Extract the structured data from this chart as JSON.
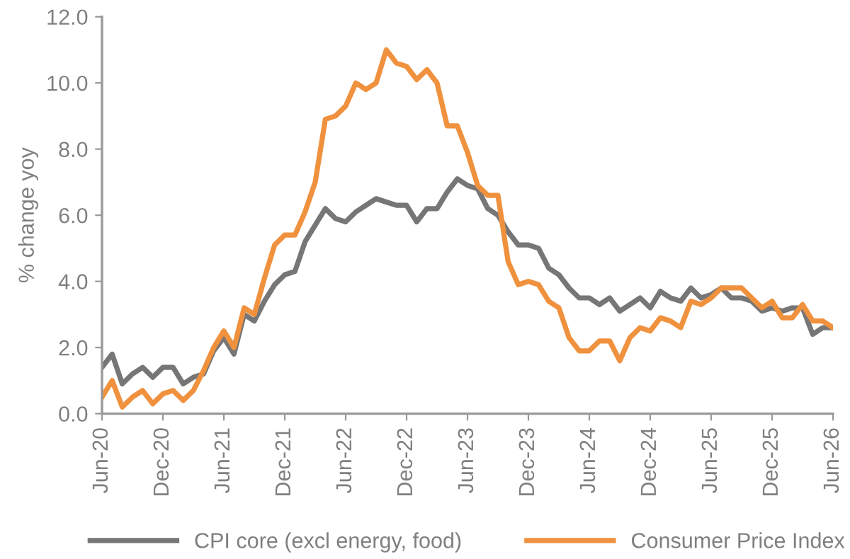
{
  "chart_data": {
    "type": "line",
    "ylabel": "% change yoy",
    "ylim": [
      0,
      12
    ],
    "yticks": [
      {
        "value": 0,
        "label": "0.0"
      },
      {
        "value": 2,
        "label": "2.0"
      },
      {
        "value": 4,
        "label": "4.0"
      },
      {
        "value": 6,
        "label": "6.0"
      },
      {
        "value": 8,
        "label": "8.0"
      },
      {
        "value": 10,
        "label": "10.0"
      },
      {
        "value": 12,
        "label": "12.0"
      }
    ],
    "xlim": [
      "2020-06",
      "2026-06"
    ],
    "xticks": [
      {
        "value": "2020-06",
        "label": "Jun-20"
      },
      {
        "value": "2020-12",
        "label": "Dec-20"
      },
      {
        "value": "2021-06",
        "label": "Jun-21"
      },
      {
        "value": "2021-12",
        "label": "Dec-21"
      },
      {
        "value": "2022-06",
        "label": "Jun-22"
      },
      {
        "value": "2022-12",
        "label": "Dec-22"
      },
      {
        "value": "2023-06",
        "label": "Jun-23"
      },
      {
        "value": "2023-12",
        "label": "Dec-23"
      },
      {
        "value": "2024-06",
        "label": "Jun-24"
      },
      {
        "value": "2024-12",
        "label": "Dec-24"
      },
      {
        "value": "2025-06",
        "label": "Jun-25"
      },
      {
        "value": "2025-12",
        "label": "Dec-25"
      },
      {
        "value": "2026-06",
        "label": "Jun-26"
      }
    ],
    "x": [
      "2020-06",
      "2020-07",
      "2020-08",
      "2020-09",
      "2020-10",
      "2020-11",
      "2020-12",
      "2021-01",
      "2021-02",
      "2021-03",
      "2021-04",
      "2021-05",
      "2021-06",
      "2021-07",
      "2021-08",
      "2021-09",
      "2021-10",
      "2021-11",
      "2021-12",
      "2022-01",
      "2022-02",
      "2022-03",
      "2022-04",
      "2022-05",
      "2022-06",
      "2022-07",
      "2022-08",
      "2022-09",
      "2022-10",
      "2022-11",
      "2022-12",
      "2023-01",
      "2023-02",
      "2023-03",
      "2023-04",
      "2023-05",
      "2023-06",
      "2023-07",
      "2023-08",
      "2023-09",
      "2023-10",
      "2023-11",
      "2023-12",
      "2024-01",
      "2024-02",
      "2024-03",
      "2024-04",
      "2024-05",
      "2024-06",
      "2024-07",
      "2024-08",
      "2024-09",
      "2024-10",
      "2024-11",
      "2024-12",
      "2025-01",
      "2025-02",
      "2025-03",
      "2025-04",
      "2025-05",
      "2025-06",
      "2025-07",
      "2025-08",
      "2025-09",
      "2025-10",
      "2025-11",
      "2025-12",
      "2026-01",
      "2026-02",
      "2026-03",
      "2026-04",
      "2026-05",
      "2026-06"
    ],
    "series": [
      {
        "name": "CPI core (excl energy, food)",
        "color": "#767676",
        "values": [
          1.4,
          1.8,
          0.9,
          1.2,
          1.4,
          1.1,
          1.4,
          1.4,
          0.9,
          1.1,
          1.2,
          1.9,
          2.3,
          1.8,
          3.0,
          2.8,
          3.4,
          3.9,
          4.2,
          4.3,
          5.2,
          5.7,
          6.2,
          5.9,
          5.8,
          6.1,
          6.3,
          6.5,
          6.4,
          6.3,
          6.3,
          5.8,
          6.2,
          6.2,
          6.7,
          7.1,
          6.9,
          6.8,
          6.2,
          6.0,
          5.5,
          5.1,
          5.1,
          5.0,
          4.4,
          4.2,
          3.8,
          3.5,
          3.5,
          3.3,
          3.5,
          3.1,
          3.3,
          3.5,
          3.2,
          3.7,
          3.5,
          3.4,
          3.8,
          3.5,
          3.6,
          3.8,
          3.5,
          3.5,
          3.4,
          3.1,
          3.2,
          3.1,
          3.2,
          3.2,
          2.4,
          2.6,
          2.6
        ]
      },
      {
        "name": "Consumer Price Index",
        "color": "#f0913e",
        "values": [
          0.5,
          1.0,
          0.2,
          0.5,
          0.7,
          0.3,
          0.6,
          0.7,
          0.4,
          0.7,
          1.3,
          2.0,
          2.5,
          2.0,
          3.2,
          3.0,
          4.1,
          5.1,
          5.4,
          5.4,
          6.1,
          7.0,
          8.9,
          9.0,
          9.3,
          10.0,
          9.8,
          10.0,
          11.0,
          10.6,
          10.5,
          10.1,
          10.4,
          10.0,
          8.7,
          8.7,
          7.9,
          6.9,
          6.6,
          6.6,
          4.6,
          3.9,
          4.0,
          3.9,
          3.4,
          3.2,
          2.3,
          1.9,
          1.9,
          2.2,
          2.2,
          1.6,
          2.3,
          2.6,
          2.5,
          2.9,
          2.8,
          2.6,
          3.4,
          3.3,
          3.5,
          3.8,
          3.8,
          3.8,
          3.5,
          3.2,
          3.4,
          2.9,
          2.9,
          3.3,
          2.8,
          2.8,
          2.6
        ]
      }
    ],
    "legend": "bottom",
    "grid": false,
    "line_style": "solid",
    "marker": "none"
  }
}
